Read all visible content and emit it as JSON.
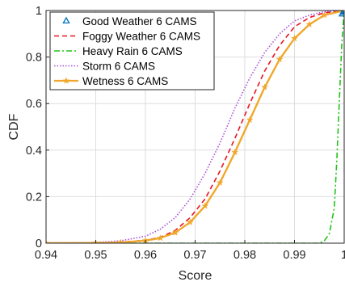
{
  "chart_data": {
    "type": "line",
    "title": "",
    "xlabel": "Score",
    "ylabel": "CDF",
    "xlim": [
      0.94,
      1.0
    ],
    "ylim": [
      0,
      1
    ],
    "grid": true,
    "legend_position": "top-left",
    "x_ticks": [
      0.94,
      0.95,
      0.96,
      0.97,
      0.98,
      0.99,
      1.0
    ],
    "x_tick_labels": [
      "0.94",
      "0.95",
      "0.96",
      "0.97",
      "0.98",
      "0.99",
      "1"
    ],
    "y_ticks": [
      0,
      0.2,
      0.4,
      0.6,
      0.8,
      1.0
    ],
    "y_tick_labels": [
      "0",
      "0.2",
      "0.4",
      "0.6",
      "0.8",
      "1"
    ],
    "series": [
      {
        "name": "Good Weather 6 CAMS",
        "color": "#0072bd",
        "style": "markers",
        "marker": "triangle",
        "x": [
          0.9996,
          0.9998,
          0.9999,
          1.0
        ],
        "y": [
          0.985,
          0.992,
          0.996,
          1.0
        ]
      },
      {
        "name": "Foggy Weather 6 CAMS",
        "color": "#e8141e",
        "style": "dashed",
        "x": [
          0.94,
          0.95,
          0.955,
          0.96,
          0.963,
          0.966,
          0.969,
          0.972,
          0.975,
          0.978,
          0.981,
          0.984,
          0.987,
          0.99,
          0.993,
          0.996,
          1.0
        ],
        "y": [
          0.0,
          0.001,
          0.004,
          0.013,
          0.025,
          0.055,
          0.11,
          0.19,
          0.31,
          0.45,
          0.6,
          0.74,
          0.85,
          0.93,
          0.97,
          0.99,
          1.0
        ]
      },
      {
        "name": "Heavy Rain 6 CAMS",
        "color": "#22c41a",
        "style": "dash-dot",
        "x": [
          0.94,
          0.995,
          0.996,
          0.997,
          0.998,
          0.9985,
          0.999,
          0.9995,
          1.0
        ],
        "y": [
          0.0,
          0.0,
          0.01,
          0.04,
          0.15,
          0.35,
          0.6,
          0.85,
          1.0
        ]
      },
      {
        "name": "Storm 6 CAMS",
        "color": "#a84fd6",
        "style": "dotted",
        "x": [
          0.94,
          0.95,
          0.955,
          0.96,
          0.963,
          0.966,
          0.969,
          0.972,
          0.975,
          0.978,
          0.981,
          0.984,
          0.987,
          0.99,
          0.993,
          0.996,
          1.0
        ],
        "y": [
          0.0,
          0.003,
          0.01,
          0.03,
          0.06,
          0.11,
          0.19,
          0.3,
          0.43,
          0.58,
          0.71,
          0.82,
          0.9,
          0.955,
          0.98,
          0.995,
          1.0
        ]
      },
      {
        "name": "Wetness 6 CAMS",
        "color": "#f0a82c",
        "style": "solid-stars",
        "x": [
          0.94,
          0.95,
          0.955,
          0.96,
          0.963,
          0.966,
          0.969,
          0.972,
          0.975,
          0.978,
          0.981,
          0.984,
          0.987,
          0.99,
          0.993,
          0.996,
          1.0
        ],
        "y": [
          0.0,
          0.001,
          0.003,
          0.011,
          0.022,
          0.045,
          0.09,
          0.16,
          0.26,
          0.39,
          0.53,
          0.67,
          0.79,
          0.88,
          0.94,
          0.98,
          1.0
        ]
      }
    ]
  }
}
